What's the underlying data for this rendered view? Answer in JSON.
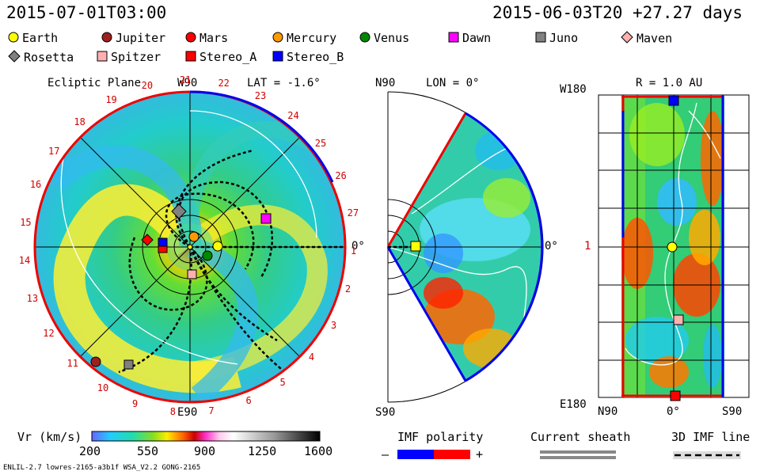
{
  "header": {
    "datetime_left": "2015-07-01T03:00",
    "datetime_right": "2015-06-03T20 +27.27 days"
  },
  "legend": {
    "items": [
      {
        "name": "Earth",
        "shape": "circle",
        "color": "#ffff00"
      },
      {
        "name": "Jupiter",
        "shape": "circle",
        "color": "#a02020"
      },
      {
        "name": "Mars",
        "shape": "circle",
        "color": "#ff0000"
      },
      {
        "name": "Mercury",
        "shape": "circle",
        "color": "#ff9900"
      },
      {
        "name": "Venus",
        "shape": "circle",
        "color": "#008800"
      },
      {
        "name": "Dawn",
        "shape": "square",
        "color": "#ff00ff"
      },
      {
        "name": "Juno",
        "shape": "square",
        "color": "#808080"
      },
      {
        "name": "Maven",
        "shape": "diamond",
        "color": "#ffb0b0"
      },
      {
        "name": "Rosetta",
        "shape": "diamond",
        "color": "#808080"
      },
      {
        "name": "Spitzer",
        "shape": "square",
        "color": "#ffb0b0"
      },
      {
        "name": "Stereo_A",
        "shape": "square",
        "color": "#ff0000"
      },
      {
        "name": "Stereo_B",
        "shape": "square",
        "color": "#0000ff"
      }
    ]
  },
  "ecliptic": {
    "title": "Ecliptic Plane",
    "top_label": "W90",
    "bottom_label": "E90",
    "lat_label": "LAT = -1.6°",
    "right_label": "0°",
    "carrington": [
      "20",
      "21",
      "22",
      "23",
      "24",
      "25",
      "26",
      "27",
      "1",
      "2",
      "3",
      "4",
      "5",
      "6",
      "7",
      "8",
      "9",
      "10",
      "11",
      "12",
      "13",
      "14",
      "15",
      "16",
      "17",
      "18",
      "19"
    ]
  },
  "meridional": {
    "top_label": "N90",
    "bottom_label": "S90",
    "lon_label": "LON = 0°",
    "right_label": "0°"
  },
  "map": {
    "title": "R = 1.0 AU",
    "top_left": "W180",
    "bottom_left": "E180",
    "mid_left": "1",
    "x_labels": [
      "N90",
      "0°",
      "S90"
    ]
  },
  "colorbar": {
    "label": "Vr (km/s)",
    "ticks": [
      "200",
      "550",
      "900",
      "1250",
      "1600"
    ]
  },
  "imf": {
    "label": "IMF polarity",
    "minus": "–",
    "plus": "+",
    "neg_color": "#0000ff",
    "pos_color": "#ff0000"
  },
  "current_sheath": {
    "label": "Current sheath"
  },
  "imf_line": {
    "label": "3D IMF line"
  },
  "footer": {
    "text": "ENLIL-2.7 lowres-2165-a3b1f WSA_V2.2 GONG-2165"
  }
}
